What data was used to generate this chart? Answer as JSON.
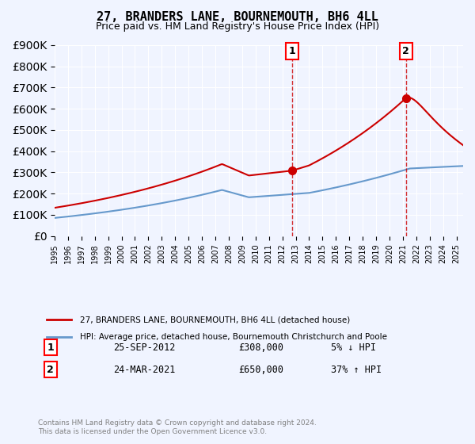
{
  "title": "27, BRANDERS LANE, BOURNEMOUTH, BH6 4LL",
  "subtitle": "Price paid vs. HM Land Registry's House Price Index (HPI)",
  "legend_line1": "27, BRANDERS LANE, BOURNEMOUTH, BH6 4LL (detached house)",
  "legend_line2": "HPI: Average price, detached house, Bournemouth Christchurch and Poole",
  "footer": "Contains HM Land Registry data © Crown copyright and database right 2024.\nThis data is licensed under the Open Government Licence v3.0.",
  "sale1_label": "1",
  "sale1_date": "25-SEP-2012",
  "sale1_price": "£308,000",
  "sale1_hpi": "5% ↓ HPI",
  "sale2_label": "2",
  "sale2_date": "24-MAR-2021",
  "sale2_price": "£650,000",
  "sale2_hpi": "37% ↑ HPI",
  "red_color": "#cc0000",
  "blue_color": "#6699cc",
  "background_color": "#f0f4ff",
  "plot_bg_color": "#f0f4ff",
  "ylim": [
    0,
    900000
  ],
  "xlim_start": 1995.0,
  "xlim_end": 2025.5,
  "sale1_x": 2012.73,
  "sale1_y": 308000,
  "sale2_x": 2021.23,
  "sale2_y": 650000
}
